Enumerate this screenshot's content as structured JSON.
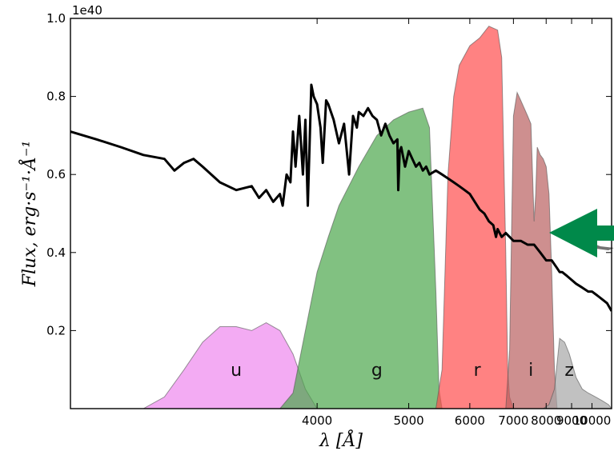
{
  "chart_data": {
    "type": "line",
    "title": "",
    "xlabel": "λ [Å]",
    "ylabel": "Flux, erg·s⁻¹·Å⁻¹",
    "y_offset_label": "1e40",
    "xlim": [
      2600,
      11200
    ],
    "ylim": [
      0.0,
      1.0
    ],
    "x_scale": "reciprocal",
    "y_ticks": [
      0.2,
      0.4,
      0.6,
      0.8,
      1.0
    ],
    "y_tick_labels": [
      "0.2",
      "0.4",
      "0.6",
      "0.8",
      "1.0"
    ],
    "x_ticks": [
      4000,
      5000,
      6000,
      7000,
      8000,
      9000,
      10000
    ],
    "x_tick_labels": [
      "4000",
      "5000",
      "6000",
      "7000",
      "8000",
      "9000",
      "10000"
    ],
    "grid": false,
    "legend": "none",
    "colors": {
      "spectrum": "#000000",
      "u": "#ee88ee",
      "g": "#4ca64c",
      "r": "#ff4d4d",
      "i": "#b96060",
      "z": "#a6a6a6",
      "arrow": "#00894a"
    },
    "spectrum": {
      "x": [
        2600,
        2700,
        2800,
        2900,
        3000,
        3050,
        3100,
        3150,
        3200,
        3300,
        3400,
        3500,
        3550,
        3600,
        3650,
        3700,
        3720,
        3750,
        3780,
        3800,
        3820,
        3850,
        3880,
        3900,
        3920,
        3950,
        3970,
        4000,
        4030,
        4050,
        4080,
        4100,
        4150,
        4200,
        4250,
        4300,
        4340,
        4380,
        4400,
        4450,
        4500,
        4550,
        4600,
        4650,
        4700,
        4750,
        4800,
        4850,
        4861,
        4880,
        4900,
        4950,
        5000,
        5050,
        5100,
        5150,
        5200,
        5250,
        5300,
        5400,
        5500,
        5600,
        5700,
        5800,
        5900,
        6000,
        6100,
        6200,
        6300,
        6400,
        6500,
        6563,
        6600,
        6700,
        6800,
        6900,
        7000,
        7200,
        7400,
        7600,
        7800,
        8000,
        8200,
        8400,
        8500,
        8600,
        8800,
        9000,
        9200,
        9500,
        9800,
        10000,
        10300,
        10600,
        10900,
        11200
      ],
      "y": [
        0.71,
        0.69,
        0.67,
        0.65,
        0.64,
        0.61,
        0.63,
        0.64,
        0.62,
        0.58,
        0.56,
        0.57,
        0.54,
        0.56,
        0.53,
        0.55,
        0.52,
        0.6,
        0.58,
        0.71,
        0.62,
        0.75,
        0.6,
        0.74,
        0.52,
        0.83,
        0.8,
        0.78,
        0.72,
        0.63,
        0.79,
        0.78,
        0.74,
        0.68,
        0.73,
        0.6,
        0.75,
        0.72,
        0.76,
        0.75,
        0.77,
        0.75,
        0.74,
        0.7,
        0.73,
        0.7,
        0.68,
        0.69,
        0.56,
        0.66,
        0.67,
        0.62,
        0.66,
        0.64,
        0.62,
        0.63,
        0.61,
        0.62,
        0.6,
        0.61,
        0.6,
        0.59,
        0.58,
        0.57,
        0.56,
        0.55,
        0.53,
        0.51,
        0.5,
        0.48,
        0.47,
        0.44,
        0.46,
        0.44,
        0.45,
        0.44,
        0.43,
        0.43,
        0.42,
        0.42,
        0.4,
        0.38,
        0.38,
        0.36,
        0.35,
        0.35,
        0.34,
        0.33,
        0.32,
        0.31,
        0.3,
        0.3,
        0.29,
        0.28,
        0.27,
        0.25
      ]
    },
    "filters": [
      {
        "name": "u",
        "label": "u",
        "label_x": 3400,
        "label_y": 0.1,
        "x": [
          2900,
          3000,
          3100,
          3200,
          3300,
          3400,
          3500,
          3600,
          3700,
          3800,
          3900,
          4000
        ],
        "y": [
          0.0,
          0.03,
          0.1,
          0.17,
          0.21,
          0.21,
          0.2,
          0.22,
          0.2,
          0.14,
          0.05,
          0.0
        ]
      },
      {
        "name": "g",
        "label": "g",
        "label_x": 4600,
        "label_y": 0.1,
        "x": [
          3700,
          3800,
          3900,
          4000,
          4100,
          4200,
          4400,
          4600,
          4800,
          5000,
          5200,
          5300,
          5400,
          5450,
          5500
        ],
        "y": [
          0.0,
          0.04,
          0.2,
          0.35,
          0.44,
          0.52,
          0.62,
          0.7,
          0.74,
          0.76,
          0.77,
          0.72,
          0.3,
          0.05,
          0.0
        ]
      },
      {
        "name": "r",
        "label": "r",
        "label_x": 6150,
        "label_y": 0.1,
        "x": [
          5400,
          5500,
          5600,
          5700,
          5800,
          6000,
          6200,
          6400,
          6600,
          6700,
          6800,
          6850,
          6900,
          7000
        ],
        "y": [
          0.0,
          0.1,
          0.6,
          0.8,
          0.88,
          0.93,
          0.95,
          0.98,
          0.97,
          0.9,
          0.4,
          0.1,
          0.03,
          0.0
        ]
      },
      {
        "name": "i",
        "label": "i",
        "label_x": 7500,
        "label_y": 0.1,
        "x": [
          6800,
          6900,
          7000,
          7100,
          7200,
          7300,
          7400,
          7500,
          7600,
          7650,
          7700,
          7800,
          7900,
          8000,
          8100,
          8200,
          8300,
          8400
        ],
        "y": [
          0.0,
          0.15,
          0.75,
          0.81,
          0.79,
          0.77,
          0.75,
          0.73,
          0.48,
          0.55,
          0.67,
          0.65,
          0.64,
          0.62,
          0.55,
          0.35,
          0.1,
          0.0
        ]
      },
      {
        "name": "z",
        "label": "z",
        "label_x": 8900,
        "label_y": 0.1,
        "x": [
          7900,
          8100,
          8300,
          8500,
          8700,
          8900,
          9200,
          9500,
          9800,
          10200,
          10600,
          11000,
          11200
        ],
        "y": [
          0.0,
          0.01,
          0.05,
          0.18,
          0.17,
          0.14,
          0.08,
          0.05,
          0.04,
          0.03,
          0.02,
          0.01,
          0.0
        ]
      }
    ]
  },
  "arrow": {
    "icon": "arrow-left-icon",
    "color": "#00894a"
  }
}
